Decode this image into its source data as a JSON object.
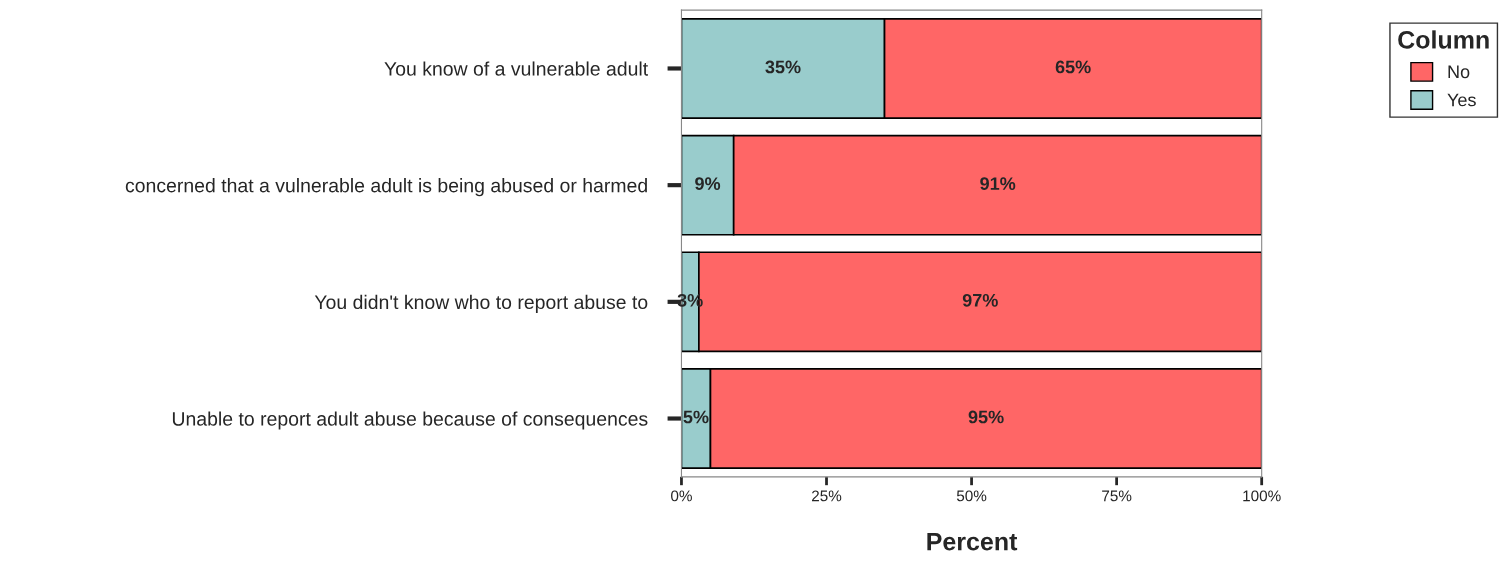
{
  "chart_data": {
    "type": "bar",
    "orientation": "horizontal",
    "stacked": true,
    "xlabel": "Percent",
    "legend_title": "Column",
    "legend": "top right",
    "categories": [
      "You know of a vulnerable adult",
      "concerned that a vulnerable adult is being abused or harmed",
      "You didn't know who to report abuse to",
      "Unable to report adult abuse because of consequences"
    ],
    "series": [
      {
        "name": "Yes",
        "color": "#99cccc",
        "values": [
          35,
          9,
          3,
          5
        ],
        "value_labels": [
          "35%",
          "9%",
          "3%",
          "5%"
        ]
      },
      {
        "name": "No",
        "color": "#ff6666",
        "values": [
          65,
          91,
          97,
          95
        ],
        "value_labels": [
          "65%",
          "91%",
          "97%",
          "95%"
        ]
      }
    ],
    "xlim": [
      0,
      100
    ],
    "xticks": [
      {
        "value": 0,
        "label": "0%"
      },
      {
        "value": 25,
        "label": "25%"
      },
      {
        "value": 50,
        "label": "50%"
      },
      {
        "value": 75,
        "label": "75%"
      },
      {
        "value": 100,
        "label": "100%"
      }
    ],
    "grid": false
  }
}
